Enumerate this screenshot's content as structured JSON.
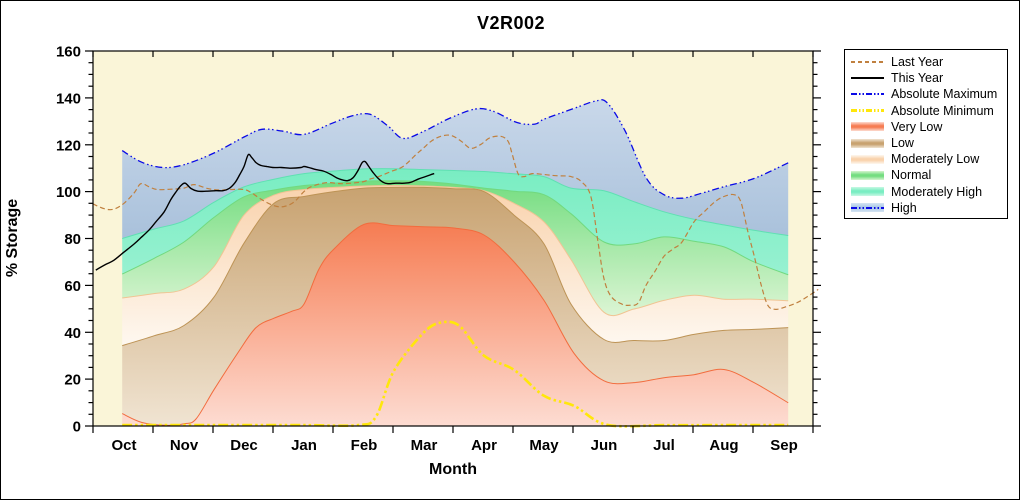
{
  "chart": {
    "title": "V2R002",
    "x_axis": {
      "label": "Month",
      "tick_labels": [
        "Oct",
        "Nov",
        "Dec",
        "Jan",
        "Feb",
        "Mar",
        "Apr",
        "May",
        "Jun",
        "Jul",
        "Aug",
        "Sep"
      ]
    },
    "y_axis": {
      "label": "% Storage",
      "ticks": [
        0,
        20,
        40,
        60,
        80,
        100,
        120,
        140,
        160
      ],
      "minor_step": 5,
      "range": [
        0,
        160
      ]
    },
    "colors": {
      "plot_background": "#FAF5D8",
      "frame": "#000000",
      "page_background": "#FFFFFF"
    },
    "legend": {
      "items": [
        {
          "label": "Last Year",
          "swatch": "line",
          "color": "#C0803F",
          "pattern": "dash",
          "thickness": 2
        },
        {
          "label": "This Year",
          "swatch": "line",
          "color": "#000000",
          "pattern": "solid",
          "thickness": 2
        },
        {
          "label": "Absolute Maximum",
          "swatch": "line",
          "color": "#0A0AE6",
          "pattern": "dashdotdot",
          "thickness": 2
        },
        {
          "label": "Absolute Minimum",
          "swatch": "line",
          "color": "#FFE70A",
          "pattern": "dashdotdot",
          "thickness": 3
        },
        {
          "label": "Very Low",
          "swatch": "band",
          "color": "#F67C52",
          "light": "#FDDCD2"
        },
        {
          "label": "Low",
          "swatch": "band",
          "color": "#C8A270",
          "light": "#F0E4D2"
        },
        {
          "label": "Moderately Low",
          "swatch": "band",
          "color": "#F9D2AC",
          "light": "#FEF8F0"
        },
        {
          "label": "Normal",
          "swatch": "band",
          "color": "#74DD80",
          "light": "#D6F4CF"
        },
        {
          "label": "Moderately High",
          "swatch": "band",
          "color": "#79EDC2",
          "light": "#C8F8E4"
        },
        {
          "label": "High",
          "swatch": "band-line",
          "color": "#AECBE8",
          "light": "#D5E4F2",
          "line_color": "#0A0AE6"
        }
      ]
    }
  },
  "chart_data": {
    "type": "area",
    "title": "V2R002",
    "xlabel": "Month",
    "ylabel": "% Storage",
    "x_categories": [
      "Oct",
      "Nov",
      "Dec",
      "Jan",
      "Feb",
      "Mar",
      "Apr",
      "May",
      "Jun",
      "Jul",
      "Aug",
      "Sep"
    ],
    "x_unit": "month index, Oct=0 through Sep=11",
    "ylim": [
      0,
      160
    ],
    "grid": false,
    "legend_position": "outside-right",
    "boundaries": {
      "zero": {
        "x": [
          -0.03,
          11.07
        ],
        "y": [
          0,
          0
        ]
      },
      "absolute_maximum": {
        "x": [
          -0.03,
          0.3,
          0.65,
          1.0,
          1.5,
          2.0,
          2.3,
          2.65,
          3.0,
          3.45,
          3.8,
          4.1,
          4.4,
          4.65,
          5.0,
          5.4,
          5.85,
          6.15,
          6.55,
          6.85,
          7.0,
          7.5,
          7.85,
          8.05,
          8.35,
          8.7,
          9.0,
          9.3,
          9.65,
          10.0,
          10.5,
          11.07
        ],
        "y": [
          117.5,
          112.5,
          110.3,
          111.5,
          116.5,
          123.3,
          126.6,
          125.8,
          124.4,
          129.0,
          132.3,
          133.0,
          128.0,
          122.7,
          125.8,
          131.0,
          135.2,
          134.3,
          129.5,
          128.8,
          130.9,
          135.5,
          138.6,
          138.0,
          126.0,
          106.0,
          98.7,
          97.2,
          99.5,
          102.1,
          105.6,
          112.3
        ]
      },
      "moderately_high_top": {
        "x": [
          -0.03,
          0.5,
          1.0,
          1.5,
          2.0,
          2.5,
          3.0,
          3.5,
          4.0,
          4.5,
          5.0,
          5.5,
          6.0,
          6.5,
          7.0,
          7.45,
          8.0,
          8.5,
          9.0,
          9.5,
          10.0,
          10.5,
          11.07
        ],
        "y": [
          80.0,
          84.0,
          87.5,
          95.5,
          102.0,
          105.3,
          107.7,
          108.8,
          109.7,
          109.8,
          109.4,
          109.0,
          108.6,
          107.6,
          106.4,
          101.5,
          100.4,
          95.7,
          91.4,
          88.2,
          85.8,
          83.5,
          81.3
        ]
      },
      "normal_top": {
        "x": [
          -0.03,
          0.5,
          1.0,
          1.5,
          2.0,
          2.5,
          3.0,
          3.5,
          4.0,
          4.5,
          5.0,
          5.5,
          6.0,
          6.5,
          7.0,
          7.45,
          8.0,
          8.5,
          9.0,
          9.5,
          10.0,
          10.5,
          11.07
        ],
        "y": [
          64.8,
          71.5,
          78.5,
          89.0,
          97.8,
          100.7,
          102.6,
          103.6,
          104.5,
          104.6,
          104.3,
          103.2,
          101.5,
          100.2,
          98.7,
          90.6,
          78.5,
          77.7,
          80.7,
          78.8,
          76.4,
          70.0,
          64.5
        ]
      },
      "moderately_low_top": {
        "x": [
          -0.03,
          0.5,
          1.0,
          1.5,
          2.0,
          2.5,
          3.0,
          3.5,
          4.0,
          4.5,
          5.0,
          5.5,
          6.0,
          6.5,
          7.0,
          7.45,
          8.0,
          8.5,
          9.0,
          9.5,
          10.0,
          10.5,
          11.07
        ],
        "y": [
          54.6,
          56.5,
          58.4,
          68.0,
          90.0,
          98.5,
          100.9,
          101.8,
          102.4,
          102.6,
          102.4,
          101.8,
          100.4,
          95.0,
          87.1,
          71.0,
          48.5,
          49.9,
          53.6,
          55.8,
          54.1,
          54.1,
          53.4
        ]
      },
      "low_top": {
        "x": [
          -0.03,
          0.5,
          1.0,
          1.5,
          2.0,
          2.5,
          3.0,
          3.5,
          4.0,
          4.5,
          5.0,
          5.5,
          6.0,
          6.5,
          7.0,
          7.45,
          8.0,
          8.5,
          9.0,
          9.5,
          10.0,
          10.5,
          11.07
        ],
        "y": [
          34.3,
          38.5,
          42.9,
          55.0,
          78.0,
          95.0,
          97.9,
          100.0,
          101.5,
          101.8,
          101.8,
          101.2,
          100.0,
          90.0,
          77.7,
          52.0,
          36.9,
          36.5,
          36.5,
          39.1,
          40.8,
          41.2,
          42.0
        ]
      },
      "very_low_top": {
        "x": [
          -0.03,
          0.3,
          0.7,
          1.0,
          1.2,
          1.5,
          1.9,
          2.2,
          2.5,
          2.8,
          3.0,
          3.25,
          3.5,
          4.0,
          4.5,
          5.0,
          5.5,
          6.0,
          6.5,
          7.0,
          7.5,
          8.0,
          8.5,
          9.0,
          9.5,
          10.0,
          10.5,
          11.07
        ],
        "y": [
          5.3,
          1.5,
          0.3,
          1.0,
          3.0,
          15.5,
          31.3,
          42.0,
          46.0,
          49.0,
          52.0,
          67.0,
          75.5,
          86.0,
          85.5,
          85.0,
          84.5,
          81.5,
          70.0,
          53.6,
          31.0,
          19.3,
          18.5,
          20.6,
          21.9,
          24.1,
          18.5,
          9.9
        ]
      },
      "absolute_minimum": {
        "x": [
          -0.03,
          1.0,
          2.0,
          3.0,
          3.9,
          4.2,
          4.5,
          5.0,
          5.3,
          5.6,
          6.0,
          6.5,
          7.0,
          7.5,
          8.05,
          9.0,
          10.0,
          11.07
        ],
        "y": [
          0.4,
          0.4,
          0.4,
          0.4,
          0.4,
          4.0,
          23.6,
          40.0,
          44.2,
          42.5,
          30.0,
          24.0,
          12.9,
          8.6,
          0.5,
          0.4,
          0.4,
          0.4
        ]
      }
    },
    "bands": [
      {
        "label": "High",
        "top": "absolute_maximum",
        "bottom": "moderately_high_top",
        "fill_top": "#C9D8EA",
        "fill_bottom": "#A9C1DB",
        "edge": null
      },
      {
        "label": "Moderately High",
        "top": "moderately_high_top",
        "bottom": "normal_top",
        "fill_top": "#79EDC2",
        "fill_bottom": "#97F1D1",
        "edge": "#5FE0B2"
      },
      {
        "label": "Normal",
        "top": "normal_top",
        "bottom": "moderately_low_top",
        "fill_top": "#74DD80",
        "fill_bottom": "#DCF5D4",
        "edge": "#71D97F"
      },
      {
        "label": "Moderately Low",
        "top": "moderately_low_top",
        "bottom": "low_top",
        "fill_top": "#F9D2AC",
        "fill_bottom": "#FEF8F0",
        "edge": "#F0C493"
      },
      {
        "label": "Low",
        "top": "low_top",
        "bottom": "very_low_top",
        "fill_top": "#C8A270",
        "fill_bottom": "#F0E4D2",
        "edge": "#BD9355"
      },
      {
        "label": "Very Low",
        "top": "very_low_top",
        "bottom": "zero",
        "fill_top": "#F67C52",
        "fill_bottom": "#FDDCD2",
        "edge": "#F26C3E"
      }
    ],
    "lines": [
      {
        "label": "Absolute Maximum",
        "boundary": "absolute_maximum",
        "color": "#0A0AE6",
        "width": 1.3,
        "dash": "7 3 1.5 2.5 1.5 3"
      },
      {
        "label": "Absolute Minimum",
        "boundary": "absolute_minimum",
        "color": "#FFE70A",
        "width": 2.6,
        "dash": "10 3 2.5 3 2.5 3"
      },
      {
        "label": "Last Year",
        "color": "#C0803F",
        "width": 1.2,
        "dash": "5 3",
        "x": [
          -0.52,
          -0.33,
          -0.17,
          0.0,
          0.17,
          0.28,
          0.42,
          0.55,
          0.75,
          1.0,
          1.17,
          1.4,
          1.6,
          1.8,
          2.0,
          2.12,
          2.3,
          2.5,
          2.66,
          2.83,
          3.0,
          3.12,
          3.37,
          3.62,
          3.87,
          4.0,
          4.12,
          4.25,
          4.45,
          4.65,
          4.87,
          5.0,
          5.12,
          5.28,
          5.45,
          5.62,
          5.78,
          5.95,
          6.1,
          6.28,
          6.4,
          6.47,
          6.57,
          6.67,
          6.8,
          7.0,
          7.2,
          7.45,
          7.62,
          7.78,
          7.9,
          8.0,
          8.12,
          8.3,
          8.42,
          8.57,
          8.7,
          8.85,
          9.0,
          9.15,
          9.3,
          9.5,
          9.67,
          9.85,
          10.0,
          10.17,
          10.28,
          10.4,
          10.5,
          10.62,
          10.73,
          10.85,
          11.0,
          11.23,
          11.45,
          11.57
        ],
        "y": [
          94.8,
          92.7,
          92.5,
          95.0,
          99.5,
          103.4,
          102.0,
          100.9,
          101.0,
          101.5,
          103.0,
          101.3,
          100.7,
          100.9,
          100.9,
          99.6,
          96.5,
          94.0,
          93.6,
          95.5,
          100.0,
          102.1,
          103.8,
          103.4,
          103.8,
          104.3,
          105.5,
          106.5,
          108.6,
          110.7,
          115.9,
          118.8,
          121.5,
          123.6,
          124.0,
          121.5,
          118.5,
          120.2,
          123.0,
          123.6,
          121.5,
          116.0,
          107.5,
          106.4,
          107.7,
          107.3,
          106.8,
          106.4,
          104.3,
          98.0,
          78.5,
          62.8,
          55.2,
          52.0,
          51.5,
          52.5,
          60.0,
          66.0,
          72.4,
          75.5,
          78.5,
          87.1,
          91.4,
          95.7,
          97.9,
          98.7,
          95.7,
          82.7,
          72.9,
          60.1,
          51.5,
          49.8,
          50.6,
          52.8,
          56.2,
          58.3
        ]
      },
      {
        "label": "This Year",
        "color": "#000000",
        "width": 1.4,
        "dash": null,
        "x": [
          -0.47,
          -0.3,
          -0.17,
          0.0,
          0.17,
          0.28,
          0.42,
          0.53,
          0.67,
          0.78,
          0.87,
          0.95,
          1.02,
          1.12,
          1.23,
          1.37,
          1.53,
          1.65,
          1.75,
          1.85,
          1.93,
          2.0,
          2.07,
          2.13,
          2.2,
          2.28,
          2.38,
          2.48,
          2.62,
          2.78,
          2.95,
          3.0,
          3.08,
          3.2,
          3.32,
          3.45,
          3.55,
          3.65,
          3.73,
          3.82,
          3.9,
          3.97,
          4.02,
          4.08,
          4.15,
          4.23,
          4.32,
          4.4,
          4.53,
          4.67,
          4.78,
          4.9,
          5.0,
          5.1,
          5.17
        ],
        "y": [
          66.5,
          69.0,
          70.7,
          74.2,
          77.7,
          80.3,
          83.7,
          87.1,
          91.4,
          96.6,
          100.0,
          102.6,
          103.6,
          101.3,
          100.2,
          100.2,
          100.4,
          100.4,
          101.3,
          103.8,
          107.3,
          110.7,
          115.7,
          114.5,
          112.4,
          111.2,
          110.7,
          110.3,
          110.3,
          110.0,
          110.3,
          110.7,
          110.3,
          109.4,
          108.8,
          107.3,
          105.8,
          104.9,
          104.7,
          106.0,
          109.0,
          112.4,
          112.8,
          110.7,
          108.2,
          105.8,
          104.0,
          103.4,
          103.6,
          103.6,
          104.0,
          105.3,
          106.2,
          107.1,
          107.7
        ]
      }
    ]
  }
}
